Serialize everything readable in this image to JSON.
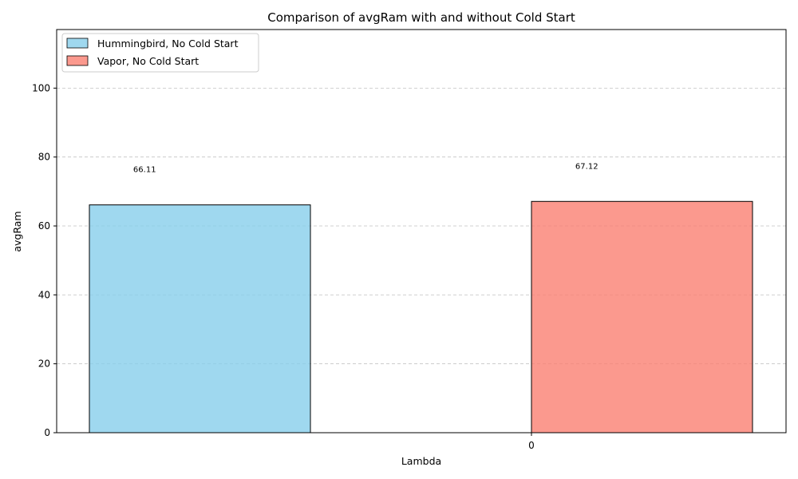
{
  "chart_data": {
    "type": "bar",
    "title": "Comparison of avgRam with and without Cold Start",
    "xlabel": "Lambda",
    "ylabel": "avgRam",
    "x_ticks": [
      "0"
    ],
    "y_ticks": [
      "0",
      "20",
      "40",
      "60",
      "80",
      "100"
    ],
    "ylim": [
      0,
      117
    ],
    "grid": "y-dashed",
    "legend_position": "top-left",
    "series": [
      {
        "name": "Hummingbird, No Cold Start",
        "color": "#87ceeb",
        "values": [
          66.11
        ],
        "data_label": "66.11"
      },
      {
        "name": "Vapor, No Cold Start",
        "color": "#fa8072",
        "values": [
          67.12
        ],
        "data_label": "67.12"
      }
    ]
  }
}
